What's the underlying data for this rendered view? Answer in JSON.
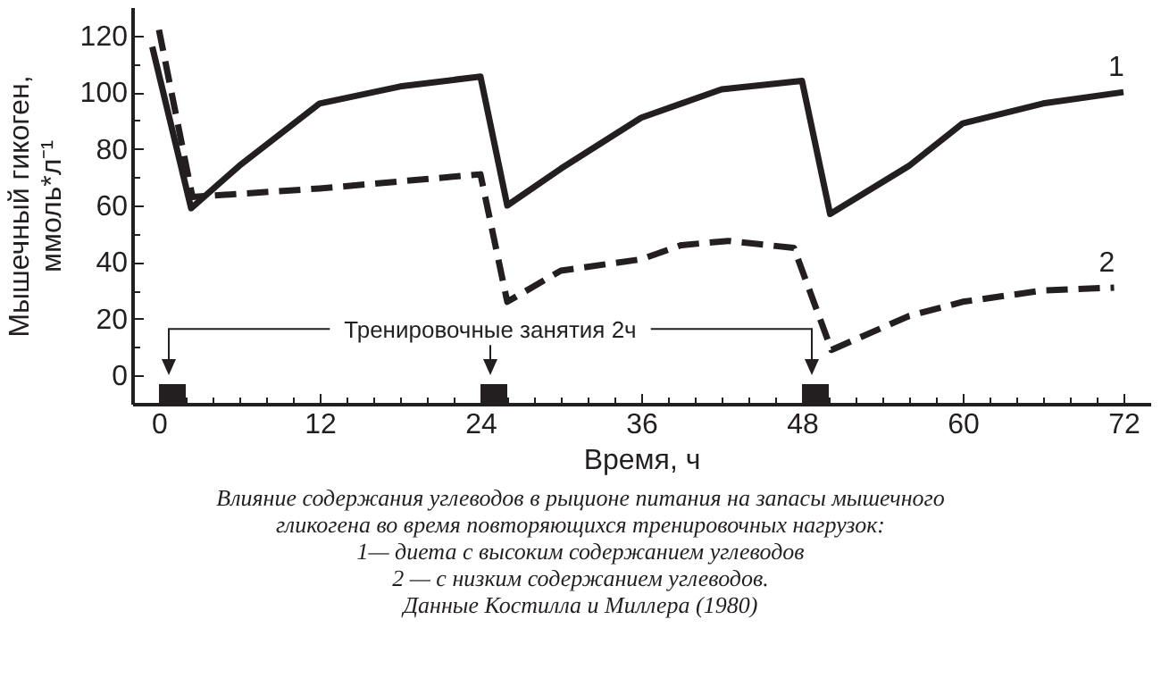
{
  "chart_data": {
    "type": "line",
    "xlabel": "Время, ч",
    "ylabel": "Мышечный гикоген, ммоль*л⁻¹",
    "xlim": [
      -2,
      74
    ],
    "ylim": [
      -10,
      130
    ],
    "xticks": [
      0,
      {
        "value": 2,
        "label": null
      },
      {
        "value": 4,
        "label": null
      },
      {
        "value": 6,
        "label": null
      },
      {
        "value": 8,
        "label": null
      },
      {
        "value": 10,
        "label": null
      },
      12,
      {
        "value": 14,
        "label": null
      },
      {
        "value": 16,
        "label": null
      },
      {
        "value": 18,
        "label": null
      },
      {
        "value": 20,
        "label": null
      },
      {
        "value": 22,
        "label": null
      },
      24,
      {
        "value": 26,
        "label": null
      },
      {
        "value": 28,
        "label": null
      },
      {
        "value": 30,
        "label": null
      },
      {
        "value": 32,
        "label": null
      },
      {
        "value": 34,
        "label": null
      },
      36,
      {
        "value": 38,
        "label": null
      },
      {
        "value": 40,
        "label": null
      },
      {
        "value": 42,
        "label": null
      },
      {
        "value": 44,
        "label": null
      },
      {
        "value": 46,
        "label": null
      },
      48,
      {
        "value": 50,
        "label": null
      },
      {
        "value": 52,
        "label": null
      },
      {
        "value": 54,
        "label": null
      },
      {
        "value": 56,
        "label": null
      },
      {
        "value": 58,
        "label": null
      },
      60,
      {
        "value": 62,
        "label": null
      },
      {
        "value": 64,
        "label": null
      },
      {
        "value": 66,
        "label": null
      },
      {
        "value": 68,
        "label": null
      },
      {
        "value": 70,
        "label": null
      },
      72
    ],
    "yticks": [
      0,
      {
        "value": 10,
        "label": null
      },
      20,
      {
        "value": 30,
        "label": null
      },
      40,
      {
        "value": 50,
        "label": null
      },
      60,
      {
        "value": 70,
        "label": null
      },
      80,
      {
        "value": 90,
        "label": null
      },
      100,
      {
        "value": 110,
        "label": null
      },
      120
    ],
    "grid": false,
    "marker": "none",
    "series": [
      {
        "name": "1",
        "color": "#231f20",
        "line_style": "solid",
        "x": [
          -0.5,
          2.4,
          6,
          12,
          18,
          24,
          26,
          30,
          36,
          42,
          48,
          50.1,
          56,
          60,
          66,
          72
        ],
        "values": [
          116,
          59,
          74,
          96,
          102,
          105.5,
          60,
          73,
          91,
          101,
          104,
          57,
          74,
          89,
          96,
          100
        ]
      },
      {
        "name": "2",
        "color": "#231f20",
        "line_style": "dashed",
        "x": [
          0,
          2.5,
          12,
          24,
          26,
          30,
          36,
          39,
          42.5,
          47.4,
          50.2,
          56,
          60,
          66,
          71.3
        ],
        "values": [
          122,
          63,
          66,
          71,
          26,
          37,
          41,
          46,
          47.5,
          45,
          9,
          21,
          26,
          30,
          31
        ]
      }
    ],
    "bands": [
      {
        "axis": "x",
        "from": 0,
        "to": 2,
        "color": "#231f20"
      },
      {
        "axis": "x",
        "from": 24,
        "to": 26,
        "color": "#231f20"
      },
      {
        "axis": "x",
        "from": 48,
        "to": 50,
        "color": "#231f20"
      }
    ],
    "annotations": [
      "Тренировочные занятия 2ч",
      "Влияние содержания углеводов в рыционе питания на запасы мышечного",
      "гликогена во время повторяющихся тренировочных нагрузок:",
      "1— диета с высоким содержанием углеводов",
      "2 — с низким содержанием углеводов.",
      "Данные Костилла и Миллера (1980)"
    ]
  }
}
